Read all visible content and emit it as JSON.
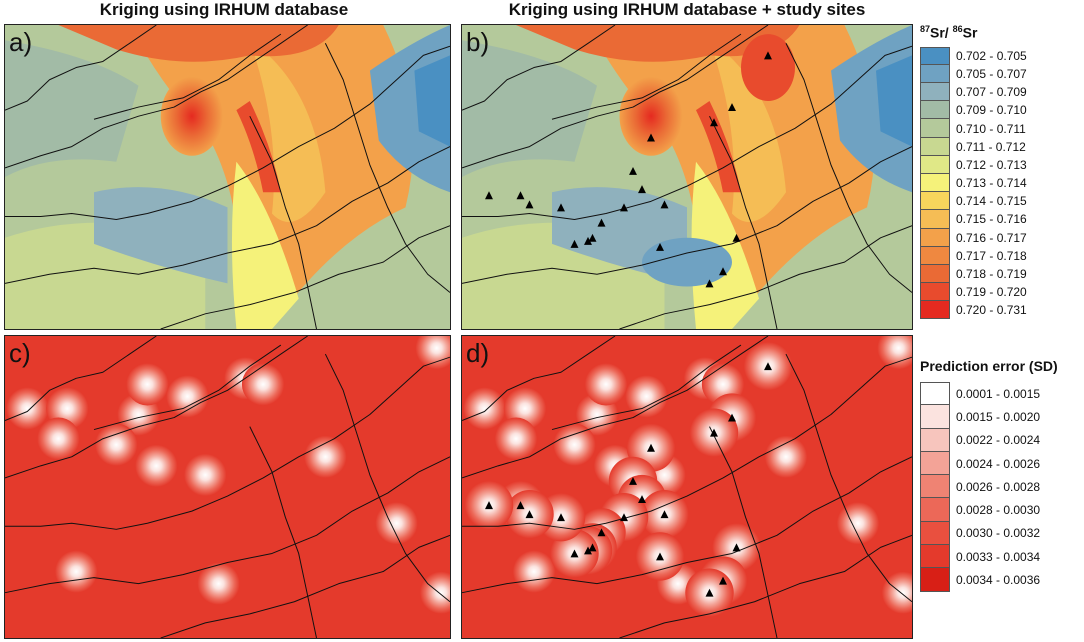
{
  "titles": {
    "left": "Kriging using IRHUM database",
    "right": "Kriging using IRHUM database + study sites"
  },
  "panels": [
    {
      "id": "a",
      "label": "a)",
      "type": "isotope"
    },
    {
      "id": "b",
      "label": "b)",
      "type": "isotope",
      "sites": true
    },
    {
      "id": "c",
      "label": "c)",
      "type": "error"
    },
    {
      "id": "d",
      "label": "d)",
      "type": "error",
      "sites": true
    }
  ],
  "legend_sr": {
    "title_prefix_sup1": "87",
    "title_mid": "Sr/ ",
    "title_prefix_sup2": "86",
    "title_end": "Sr",
    "items": [
      {
        "label": "0.702 - 0.705",
        "color": "#4a90c2"
      },
      {
        "label": "0.705 - 0.707",
        "color": "#6fa2c2"
      },
      {
        "label": "0.707 - 0.709",
        "color": "#8fb1bd"
      },
      {
        "label": "0.709 - 0.710",
        "color": "#a2bba6"
      },
      {
        "label": "0.710 - 0.711",
        "color": "#b4c99b"
      },
      {
        "label": "0.711 - 0.712",
        "color": "#c8d891"
      },
      {
        "label": "0.712 - 0.713",
        "color": "#e0e887"
      },
      {
        "label": "0.713 - 0.714",
        "color": "#f5f27a"
      },
      {
        "label": "0.714 - 0.715",
        "color": "#f7d55c"
      },
      {
        "label": "0.715 - 0.716",
        "color": "#f5bd55"
      },
      {
        "label": "0.716 - 0.717",
        "color": "#f3a14a"
      },
      {
        "label": "0.717 - 0.718",
        "color": "#ef8840"
      },
      {
        "label": "0.718 - 0.719",
        "color": "#ea6a35"
      },
      {
        "label": "0.719 - 0.720",
        "color": "#e84b2d"
      },
      {
        "label": "0.720 - 0.731",
        "color": "#e52a20"
      }
    ]
  },
  "legend_error": {
    "title": "Prediction error (SD)",
    "items": [
      {
        "label": "0.0001 - 0.0015",
        "color": "#ffffff"
      },
      {
        "label": "0.0015 - 0.0020",
        "color": "#fbe3df"
      },
      {
        "label": "0.0022 - 0.0024",
        "color": "#f7c5bd"
      },
      {
        "label": "0.0024 - 0.0026",
        "color": "#f3a397"
      },
      {
        "label": "0.0026 - 0.0028",
        "color": "#ef8373"
      },
      {
        "label": "0.0028 - 0.0030",
        "color": "#ec6858"
      },
      {
        "label": "0.0030 - 0.0032",
        "color": "#e9503f"
      },
      {
        "label": "0.0033 - 0.0034",
        "color": "#e43a2c"
      },
      {
        "label": "0.0034 - 0.0036",
        "color": "#d81f16"
      }
    ]
  },
  "map_data": {
    "study_sites": [
      [
        0.68,
        0.1
      ],
      [
        0.6,
        0.27
      ],
      [
        0.56,
        0.32
      ],
      [
        0.42,
        0.37
      ],
      [
        0.38,
        0.48
      ],
      [
        0.4,
        0.54
      ],
      [
        0.45,
        0.59
      ],
      [
        0.36,
        0.6
      ],
      [
        0.31,
        0.65
      ],
      [
        0.29,
        0.7
      ],
      [
        0.28,
        0.71
      ],
      [
        0.25,
        0.72
      ],
      [
        0.22,
        0.6
      ],
      [
        0.13,
        0.56
      ],
      [
        0.15,
        0.59
      ],
      [
        0.06,
        0.56
      ],
      [
        0.61,
        0.7
      ],
      [
        0.58,
        0.81
      ],
      [
        0.55,
        0.85
      ],
      [
        0.44,
        0.73
      ]
    ]
  }
}
